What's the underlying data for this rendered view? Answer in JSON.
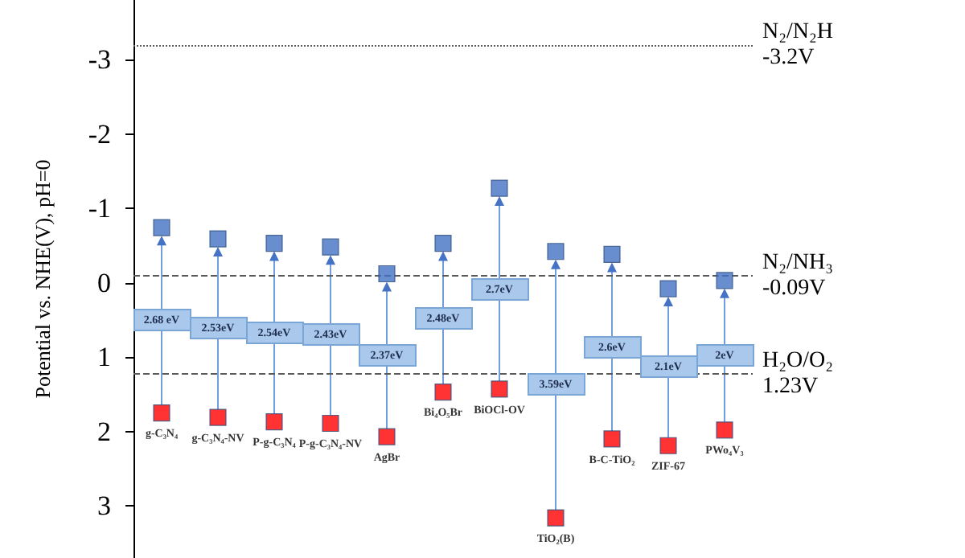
{
  "chart_data": {
    "type": "scatter",
    "ylabel": "Potential vs. NHE(V), pH=0",
    "categories": [
      "g-C₃N₄",
      "g-C₃N₄-NV",
      "P-g-C₃N₄",
      "P-g-C₃N₄-NV",
      "AgBr",
      "Bi₄O₅Br",
      "BiOCl-OV",
      "TiO₂(B)",
      "B-C-TiO₂",
      "ZIF-67",
      "PWo₄V₃"
    ],
    "series": [
      {
        "color": "#4472c4",
        "values": [
          -0.74,
          -0.59,
          -0.53,
          -0.48,
          -0.12,
          -0.53,
          -1.27,
          -0.42,
          -0.38,
          0.08,
          -0.03
        ]
      },
      {
        "color": "#ff0000",
        "values": [
          1.75,
          1.81,
          1.87,
          1.89,
          2.07,
          1.47,
          1.43,
          3.16,
          2.1,
          2.19,
          1.98
        ]
      }
    ],
    "ylim": [
      3.7,
      -3.8
    ],
    "yticks": [
      -3,
      -2,
      -1,
      0,
      1,
      2,
      3
    ],
    "tick_labels": "y",
    "marker": "square",
    "ref_lines": [
      {
        "axis": "y",
        "value": -3.2,
        "label": "N₂/N₂H\n-3.2V",
        "line_style": "dotted",
        "color": "#595959"
      },
      {
        "axis": "y",
        "value": -0.09,
        "label": "N₂/NH₃\n-0.09V",
        "line_style": "dashed",
        "color": "#595959"
      },
      {
        "axis": "y",
        "value": 1.23,
        "label": "H₂O/O₂\n1.23V",
        "line_style": "dashed",
        "color": "#595959"
      }
    ],
    "annotations": [
      "2.68 eV",
      "2.53eV",
      "2.54eV",
      "2.43eV",
      "2.37eV",
      "2.48eV",
      "2.7eV",
      "3.59eV",
      "2.6eV",
      "2.1eV",
      "2eV"
    ]
  }
}
